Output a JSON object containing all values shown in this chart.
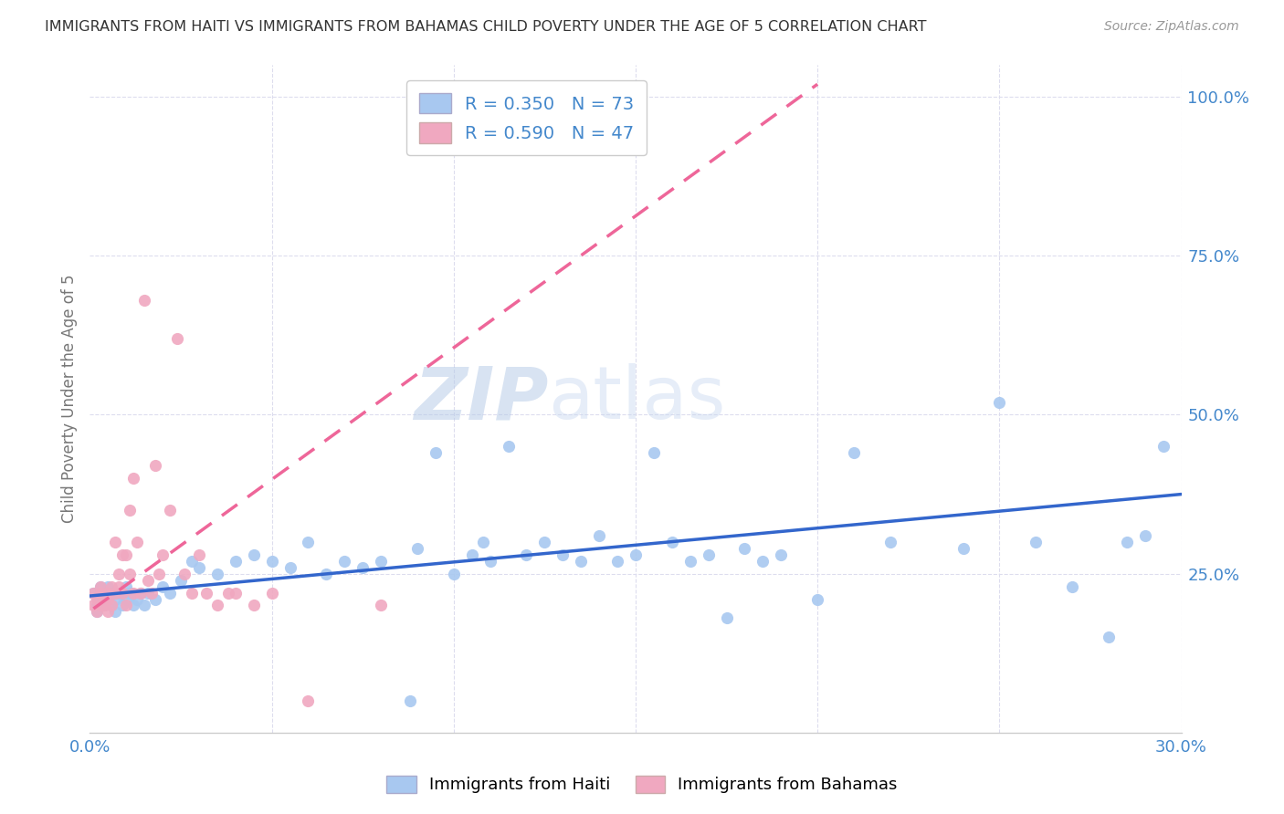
{
  "title": "IMMIGRANTS FROM HAITI VS IMMIGRANTS FROM BAHAMAS CHILD POVERTY UNDER THE AGE OF 5 CORRELATION CHART",
  "source": "Source: ZipAtlas.com",
  "ylabel": "Child Poverty Under the Age of 5",
  "xlim": [
    0.0,
    0.3
  ],
  "ylim": [
    0.0,
    1.05
  ],
  "xticks": [
    0.0,
    0.05,
    0.1,
    0.15,
    0.2,
    0.25,
    0.3
  ],
  "xticklabels": [
    "0.0%",
    "",
    "",
    "",
    "",
    "",
    "30.0%"
  ],
  "yticks_right": [
    0.25,
    0.5,
    0.75,
    1.0
  ],
  "yticklabels_right": [
    "25.0%",
    "50.0%",
    "75.0%",
    "100.0%"
  ],
  "haiti_color": "#a8c8f0",
  "bahamas_color": "#f0a8c0",
  "haiti_line_color": "#3366cc",
  "bahamas_line_color": "#ee6699",
  "haiti_R": 0.35,
  "haiti_N": 73,
  "bahamas_R": 0.59,
  "bahamas_N": 47,
  "legend_label_haiti": "Immigrants from Haiti",
  "legend_label_bahamas": "Immigrants from Bahamas",
  "watermark_zip": "ZIP",
  "watermark_atlas": "atlas",
  "background_color": "#ffffff",
  "grid_color": "#ddddee",
  "title_color": "#333333",
  "axis_color": "#4488cc",
  "haiti_scatter_x": [
    0.001,
    0.002,
    0.002,
    0.003,
    0.003,
    0.004,
    0.004,
    0.005,
    0.005,
    0.006,
    0.006,
    0.007,
    0.007,
    0.008,
    0.009,
    0.01,
    0.01,
    0.011,
    0.012,
    0.013,
    0.014,
    0.015,
    0.016,
    0.018,
    0.02,
    0.022,
    0.025,
    0.028,
    0.03,
    0.035,
    0.04,
    0.045,
    0.05,
    0.055,
    0.06,
    0.065,
    0.07,
    0.075,
    0.08,
    0.09,
    0.095,
    0.1,
    0.105,
    0.11,
    0.115,
    0.12,
    0.125,
    0.13,
    0.14,
    0.145,
    0.15,
    0.155,
    0.16,
    0.165,
    0.17,
    0.175,
    0.18,
    0.185,
    0.19,
    0.2,
    0.21,
    0.22,
    0.24,
    0.25,
    0.26,
    0.27,
    0.28,
    0.285,
    0.29,
    0.295,
    0.135,
    0.108,
    0.088
  ],
  "haiti_scatter_y": [
    0.22,
    0.2,
    0.19,
    0.23,
    0.21,
    0.2,
    0.22,
    0.21,
    0.23,
    0.2,
    0.22,
    0.19,
    0.21,
    0.22,
    0.2,
    0.23,
    0.21,
    0.22,
    0.2,
    0.21,
    0.22,
    0.2,
    0.22,
    0.21,
    0.23,
    0.22,
    0.24,
    0.27,
    0.26,
    0.25,
    0.27,
    0.28,
    0.27,
    0.26,
    0.3,
    0.25,
    0.27,
    0.26,
    0.27,
    0.29,
    0.44,
    0.25,
    0.28,
    0.27,
    0.45,
    0.28,
    0.3,
    0.28,
    0.31,
    0.27,
    0.28,
    0.44,
    0.3,
    0.27,
    0.28,
    0.18,
    0.29,
    0.27,
    0.28,
    0.21,
    0.44,
    0.3,
    0.29,
    0.52,
    0.3,
    0.23,
    0.15,
    0.3,
    0.31,
    0.45,
    0.27,
    0.3,
    0.05
  ],
  "bahamas_scatter_x": [
    0.001,
    0.001,
    0.002,
    0.002,
    0.003,
    0.003,
    0.003,
    0.004,
    0.004,
    0.005,
    0.005,
    0.005,
    0.006,
    0.006,
    0.007,
    0.007,
    0.008,
    0.008,
    0.009,
    0.009,
    0.01,
    0.01,
    0.011,
    0.011,
    0.012,
    0.012,
    0.013,
    0.014,
    0.015,
    0.016,
    0.017,
    0.018,
    0.019,
    0.02,
    0.022,
    0.024,
    0.026,
    0.028,
    0.03,
    0.032,
    0.035,
    0.038,
    0.04,
    0.045,
    0.05,
    0.06,
    0.08
  ],
  "bahamas_scatter_y": [
    0.2,
    0.22,
    0.19,
    0.21,
    0.2,
    0.22,
    0.23,
    0.21,
    0.2,
    0.22,
    0.19,
    0.21,
    0.23,
    0.2,
    0.22,
    0.3,
    0.23,
    0.25,
    0.28,
    0.22,
    0.2,
    0.28,
    0.35,
    0.25,
    0.22,
    0.4,
    0.3,
    0.22,
    0.68,
    0.24,
    0.22,
    0.42,
    0.25,
    0.28,
    0.35,
    0.62,
    0.25,
    0.22,
    0.28,
    0.22,
    0.2,
    0.22,
    0.22,
    0.2,
    0.22,
    0.05,
    0.2
  ],
  "bahamas_line_x0": 0.001,
  "bahamas_line_x1": 0.2,
  "bahamas_line_y0": 0.195,
  "bahamas_line_y1": 1.02,
  "haiti_line_x0": 0.0,
  "haiti_line_x1": 0.3,
  "haiti_line_y0": 0.215,
  "haiti_line_y1": 0.375
}
